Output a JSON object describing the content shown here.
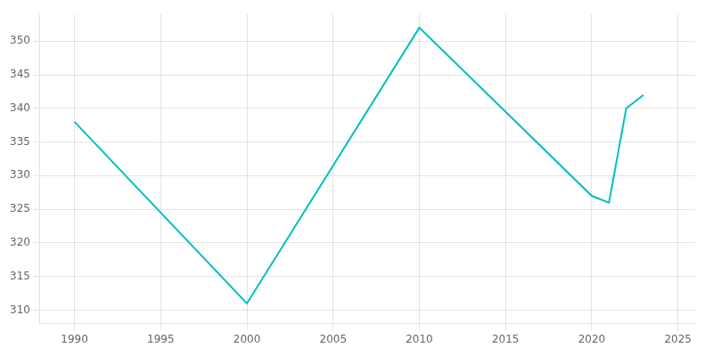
{
  "chart_data": {
    "type": "line",
    "x": [
      1990,
      2000,
      2010,
      2020,
      2021,
      2022,
      2023
    ],
    "values": [
      338,
      311,
      352,
      327,
      326,
      340,
      342
    ],
    "color": "#00BEBE",
    "xlim": [
      1988,
      2026
    ],
    "ylim": [
      308,
      354
    ],
    "xticks": [
      1990,
      1995,
      2000,
      2005,
      2010,
      2015,
      2020,
      2025
    ],
    "yticks": [
      310,
      315,
      320,
      325,
      330,
      335,
      340,
      345,
      350
    ],
    "grid": true
  }
}
